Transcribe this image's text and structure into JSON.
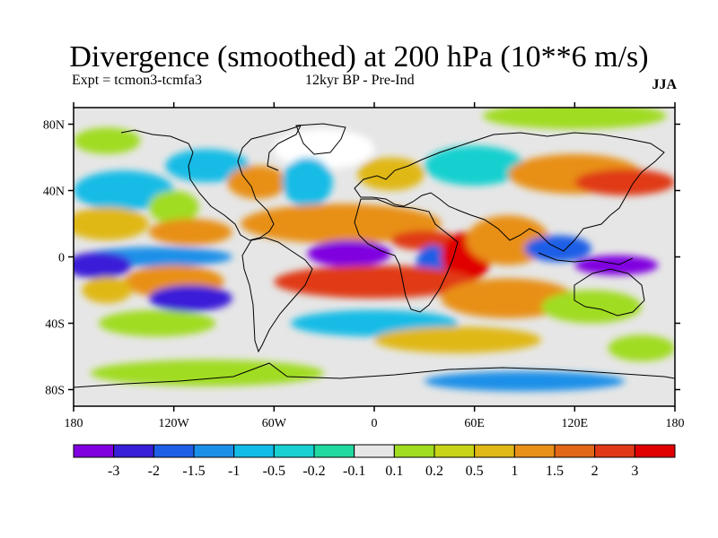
{
  "header": {
    "title": "Divergence (smoothed) at 200 hPa (10**6 m/s)",
    "experiment": "Expt = tcmon3-tcmfa3",
    "period": "12kyr BP - Pre-Ind",
    "season": "JJA"
  },
  "map": {
    "lon_range": [
      -180,
      180
    ],
    "lat_range": [
      -90,
      90
    ],
    "lat_ticks": [
      {
        "value": 80,
        "label": "80N"
      },
      {
        "value": 40,
        "label": "40N"
      },
      {
        "value": 0,
        "label": "0"
      },
      {
        "value": -40,
        "label": "40S"
      },
      {
        "value": -80,
        "label": "80S"
      }
    ],
    "lon_ticks": [
      {
        "value": -180,
        "label": "180"
      },
      {
        "value": -120,
        "label": "120W"
      },
      {
        "value": -60,
        "label": "60W"
      },
      {
        "value": 0,
        "label": "0"
      },
      {
        "value": 60,
        "label": "60E"
      },
      {
        "value": 120,
        "label": "120E"
      },
      {
        "value": 180,
        "label": "180"
      }
    ]
  },
  "colorbar": {
    "colors": [
      "#8000e0",
      "#3a1fd8",
      "#1f5fe6",
      "#1b90e8",
      "#12bce6",
      "#18d0d0",
      "#20d8a0",
      "#e6e6e6",
      "#a0dc20",
      "#c8d418",
      "#e0b818",
      "#e89018",
      "#e06818",
      "#e03a18",
      "#e00000"
    ],
    "labels": [
      "-3",
      "-2",
      "-1.5",
      "-1",
      "-0.5",
      "-0.2",
      "-0.1",
      "0.1",
      "0.2",
      "0.5",
      "1",
      "1.5",
      "2",
      "3"
    ]
  },
  "blobs": [
    {
      "lon": -30,
      "lat": 65,
      "rx": 30,
      "ry": 12,
      "color": "#ffffff"
    },
    {
      "lon": 120,
      "lat": 85,
      "rx": 55,
      "ry": 8,
      "color": "#a0dc20"
    },
    {
      "lon": -160,
      "lat": 70,
      "rx": 20,
      "ry": 8,
      "color": "#a0dc20"
    },
    {
      "lon": -100,
      "lat": 55,
      "rx": 25,
      "ry": 10,
      "color": "#12bce6"
    },
    {
      "lon": -70,
      "lat": 45,
      "rx": 18,
      "ry": 10,
      "color": "#e89018"
    },
    {
      "lon": -40,
      "lat": 45,
      "rx": 15,
      "ry": 15,
      "color": "#12bce6"
    },
    {
      "lon": 10,
      "lat": 50,
      "rx": 20,
      "ry": 10,
      "color": "#e0b818"
    },
    {
      "lon": 60,
      "lat": 55,
      "rx": 30,
      "ry": 12,
      "color": "#18d0d0"
    },
    {
      "lon": 120,
      "lat": 50,
      "rx": 40,
      "ry": 12,
      "color": "#e89018"
    },
    {
      "lon": 150,
      "lat": 45,
      "rx": 30,
      "ry": 8,
      "color": "#e03a18"
    },
    {
      "lon": -150,
      "lat": 40,
      "rx": 30,
      "ry": 12,
      "color": "#12bce6"
    },
    {
      "lon": -120,
      "lat": 30,
      "rx": 15,
      "ry": 10,
      "color": "#a0dc20"
    },
    {
      "lon": -160,
      "lat": 20,
      "rx": 25,
      "ry": 10,
      "color": "#e0b818"
    },
    {
      "lon": -110,
      "lat": 15,
      "rx": 25,
      "ry": 8,
      "color": "#e89018"
    },
    {
      "lon": -130,
      "lat": 0,
      "rx": 45,
      "ry": 6,
      "color": "#1b90e8"
    },
    {
      "lon": -165,
      "lat": -5,
      "rx": 20,
      "ry": 8,
      "color": "#3a1fd8"
    },
    {
      "lon": -120,
      "lat": -15,
      "rx": 30,
      "ry": 10,
      "color": "#e89018"
    },
    {
      "lon": -110,
      "lat": -25,
      "rx": 25,
      "ry": 8,
      "color": "#3a1fd8"
    },
    {
      "lon": -160,
      "lat": -20,
      "rx": 15,
      "ry": 8,
      "color": "#e0b818"
    },
    {
      "lon": -130,
      "lat": -40,
      "rx": 35,
      "ry": 8,
      "color": "#a0dc20"
    },
    {
      "lon": -20,
      "lat": 20,
      "rx": 60,
      "ry": 12,
      "color": "#e89018"
    },
    {
      "lon": 30,
      "lat": 10,
      "rx": 20,
      "ry": 6,
      "color": "#e03a18"
    },
    {
      "lon": -15,
      "lat": 2,
      "rx": 25,
      "ry": 8,
      "color": "#8000e0"
    },
    {
      "lon": 35,
      "lat": -5,
      "rx": 10,
      "ry": 12,
      "color": "#1f5fe6"
    },
    {
      "lon": 55,
      "lat": 0,
      "rx": 15,
      "ry": 15,
      "color": "#e00000"
    },
    {
      "lon": 80,
      "lat": 10,
      "rx": 25,
      "ry": 15,
      "color": "#e89018"
    },
    {
      "lon": 110,
      "lat": 5,
      "rx": 20,
      "ry": 8,
      "color": "#1f5fe6"
    },
    {
      "lon": 145,
      "lat": -5,
      "rx": 25,
      "ry": 6,
      "color": "#8000e0"
    },
    {
      "lon": 0,
      "lat": -15,
      "rx": 60,
      "ry": 10,
      "color": "#e03a18"
    },
    {
      "lon": 80,
      "lat": -25,
      "rx": 40,
      "ry": 12,
      "color": "#e89018"
    },
    {
      "lon": 130,
      "lat": -30,
      "rx": 30,
      "ry": 10,
      "color": "#a0dc20"
    },
    {
      "lon": 0,
      "lat": -40,
      "rx": 50,
      "ry": 8,
      "color": "#12bce6"
    },
    {
      "lon": 50,
      "lat": -50,
      "rx": 50,
      "ry": 8,
      "color": "#e0b818"
    },
    {
      "lon": -100,
      "lat": -70,
      "rx": 70,
      "ry": 8,
      "color": "#a0dc20"
    },
    {
      "lon": 90,
      "lat": -75,
      "rx": 60,
      "ry": 6,
      "color": "#1b90e8"
    },
    {
      "lon": 160,
      "lat": -55,
      "rx": 20,
      "ry": 8,
      "color": "#a0dc20"
    }
  ]
}
